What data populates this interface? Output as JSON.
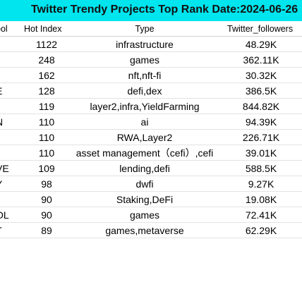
{
  "title": "Twitter Trendy Projects Top Rank Date:2024-06-26",
  "colors": {
    "title_background": "#00e5ee"
  },
  "columns": {
    "symbol": "ool",
    "hot_index": "Hot Index",
    "type": "Type",
    "followers": "Twitter_followers"
  },
  "rows": [
    {
      "symbol": "",
      "hot_index": "1122",
      "type": "infrastructure",
      "followers": "48.29K"
    },
    {
      "symbol": "",
      "hot_index": "248",
      "type": "games",
      "followers": "362.11K"
    },
    {
      "symbol": "",
      "hot_index": "162",
      "type": "nft,nft-fi",
      "followers": "30.32K"
    },
    {
      "symbol": "E",
      "hot_index": "128",
      "type": "defi,dex",
      "followers": "386.5K"
    },
    {
      "symbol": "",
      "hot_index": "119",
      "type": "layer2,infra,YieldFarming",
      "followers": "844.82K"
    },
    {
      "symbol": "N",
      "hot_index": "110",
      "type": "ai",
      "followers": "94.39K"
    },
    {
      "symbol": "",
      "hot_index": "110",
      "type": "RWA,Layer2",
      "followers": "226.71K"
    },
    {
      "symbol": "",
      "hot_index": "110",
      "type": "asset management（cefi）,cefi",
      "followers": "39.01K"
    },
    {
      "symbol": "VE",
      "hot_index": "109",
      "type": "lending,defi",
      "followers": "588.5K"
    },
    {
      "symbol": "Y",
      "hot_index": "98",
      "type": "dwfi",
      "followers": "9.27K"
    },
    {
      "symbol": "",
      "hot_index": "90",
      "type": "Staking,DeFi",
      "followers": "19.08K"
    },
    {
      "symbol": "OL",
      "hot_index": "90",
      "type": "games",
      "followers": "72.41K"
    },
    {
      "symbol": "T",
      "hot_index": "89",
      "type": "games,metaverse",
      "followers": "62.29K"
    }
  ]
}
